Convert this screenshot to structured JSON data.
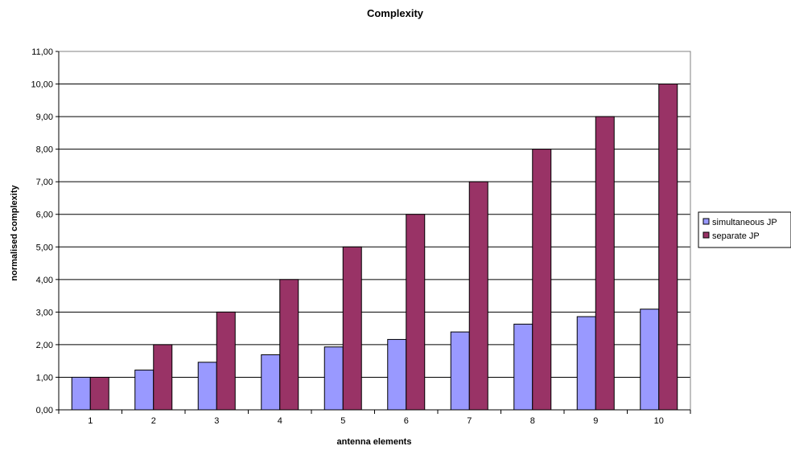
{
  "chart_data": {
    "type": "bar",
    "title": "Complexity",
    "xlabel": "antenna elements",
    "ylabel": "normalised complexity",
    "categories": [
      "1",
      "2",
      "3",
      "4",
      "5",
      "6",
      "7",
      "8",
      "9",
      "10"
    ],
    "series": [
      {
        "name": "simultaneous JP",
        "color": "#9999ff",
        "values": [
          1.0,
          1.22,
          1.46,
          1.69,
          1.93,
          2.16,
          2.39,
          2.63,
          2.86,
          3.09
        ]
      },
      {
        "name": "separate JP",
        "color": "#993366",
        "values": [
          1.0,
          2.0,
          3.0,
          4.0,
          5.0,
          6.0,
          7.0,
          8.0,
          9.0,
          10.0
        ]
      }
    ],
    "ylim": [
      0,
      11
    ],
    "yticks": [
      "0,00",
      "1,00",
      "2,00",
      "3,00",
      "4,00",
      "5,00",
      "6,00",
      "7,00",
      "8,00",
      "9,00",
      "10,00",
      "11,00"
    ],
    "grid": true,
    "legend_position": "right"
  }
}
